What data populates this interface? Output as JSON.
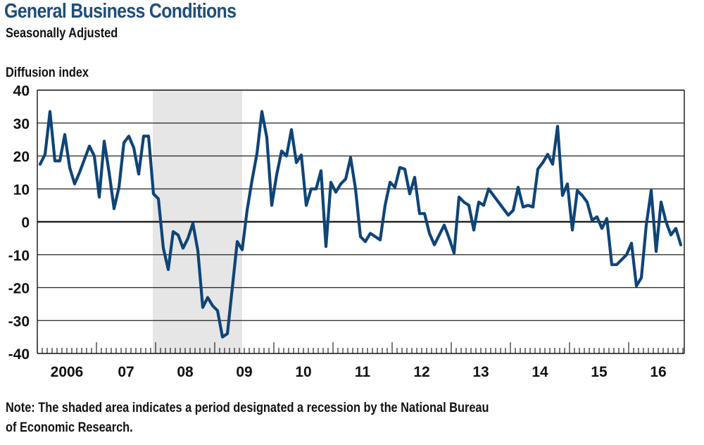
{
  "header": {
    "title": "General Business Conditions",
    "subtitle": "Seasonally Adjusted"
  },
  "footer": {
    "note_line1": "Note: The shaded area indicates a period designated a recession by the National Bureau",
    "note_line2": "of Economic Research."
  },
  "colors": {
    "title": "#1f4e7a",
    "line": "#0f4477",
    "recession": "#e6e6e6",
    "grid": "#222222"
  },
  "chart_data": {
    "type": "line",
    "title": "General Business Conditions",
    "subtitle": "Seasonally Adjusted",
    "ylabel": "Diffusion index",
    "xlabel": "",
    "ylim": [
      -40,
      40
    ],
    "yticks": [
      40,
      30,
      20,
      10,
      0,
      -10,
      -20,
      -30,
      -40
    ],
    "ytick_labels": [
      "40",
      "30",
      "20",
      "10",
      "0",
      "-10",
      "-20",
      "-30",
      "-40"
    ],
    "xtick_labels": [
      "2006",
      "07",
      "08",
      "09",
      "10",
      "11",
      "12",
      "13",
      "14",
      "15",
      "16"
    ],
    "x_start": "2006-01",
    "frequency": "monthly",
    "grid": true,
    "recession": {
      "start": "2007-12",
      "end": "2009-06"
    },
    "series": [
      {
        "name": "General Business Conditions",
        "values": [
          17.5,
          20.5,
          33.5,
          18.5,
          18.5,
          26.5,
          16.5,
          11.5,
          15,
          19,
          23,
          20,
          7.5,
          24.5,
          15,
          4,
          10.5,
          24,
          26,
          22.5,
          14.5,
          26,
          26,
          8.5,
          7,
          -8,
          -14.5,
          -3,
          -4,
          -8,
          -5,
          -0.5,
          -8.7,
          -26,
          -23,
          -25.5,
          -27,
          -35,
          -34,
          -20,
          -6,
          -8.5,
          3.5,
          12.6,
          20.7,
          33.5,
          25.6,
          5,
          14.3,
          21.5,
          20,
          28,
          18,
          20.3,
          5,
          10,
          10,
          15.5,
          -7.5,
          12,
          9,
          11.5,
          13,
          19.5,
          10,
          -4.5,
          -6,
          -3.5,
          -4.5,
          -5.5,
          5,
          12,
          10.5,
          16.5,
          16,
          8.5,
          13.5,
          2.5,
          2.5,
          -3.5,
          -7,
          -4,
          -1,
          -5,
          -9.5,
          7.5,
          6,
          5,
          -2.5,
          6,
          5,
          10,
          8,
          6,
          4,
          2,
          3.5,
          10.5,
          4.5,
          5,
          4.5,
          16,
          18,
          20.5,
          17.5,
          29,
          8,
          11.5,
          -2.5,
          9.5,
          8,
          6,
          0.5,
          1.5,
          -2,
          1,
          -13,
          -13,
          -11.5,
          -10,
          -6.5,
          -19.5,
          -17,
          -1,
          9.5,
          -9,
          6,
          0,
          -4,
          -2,
          -7
        ]
      }
    ]
  }
}
